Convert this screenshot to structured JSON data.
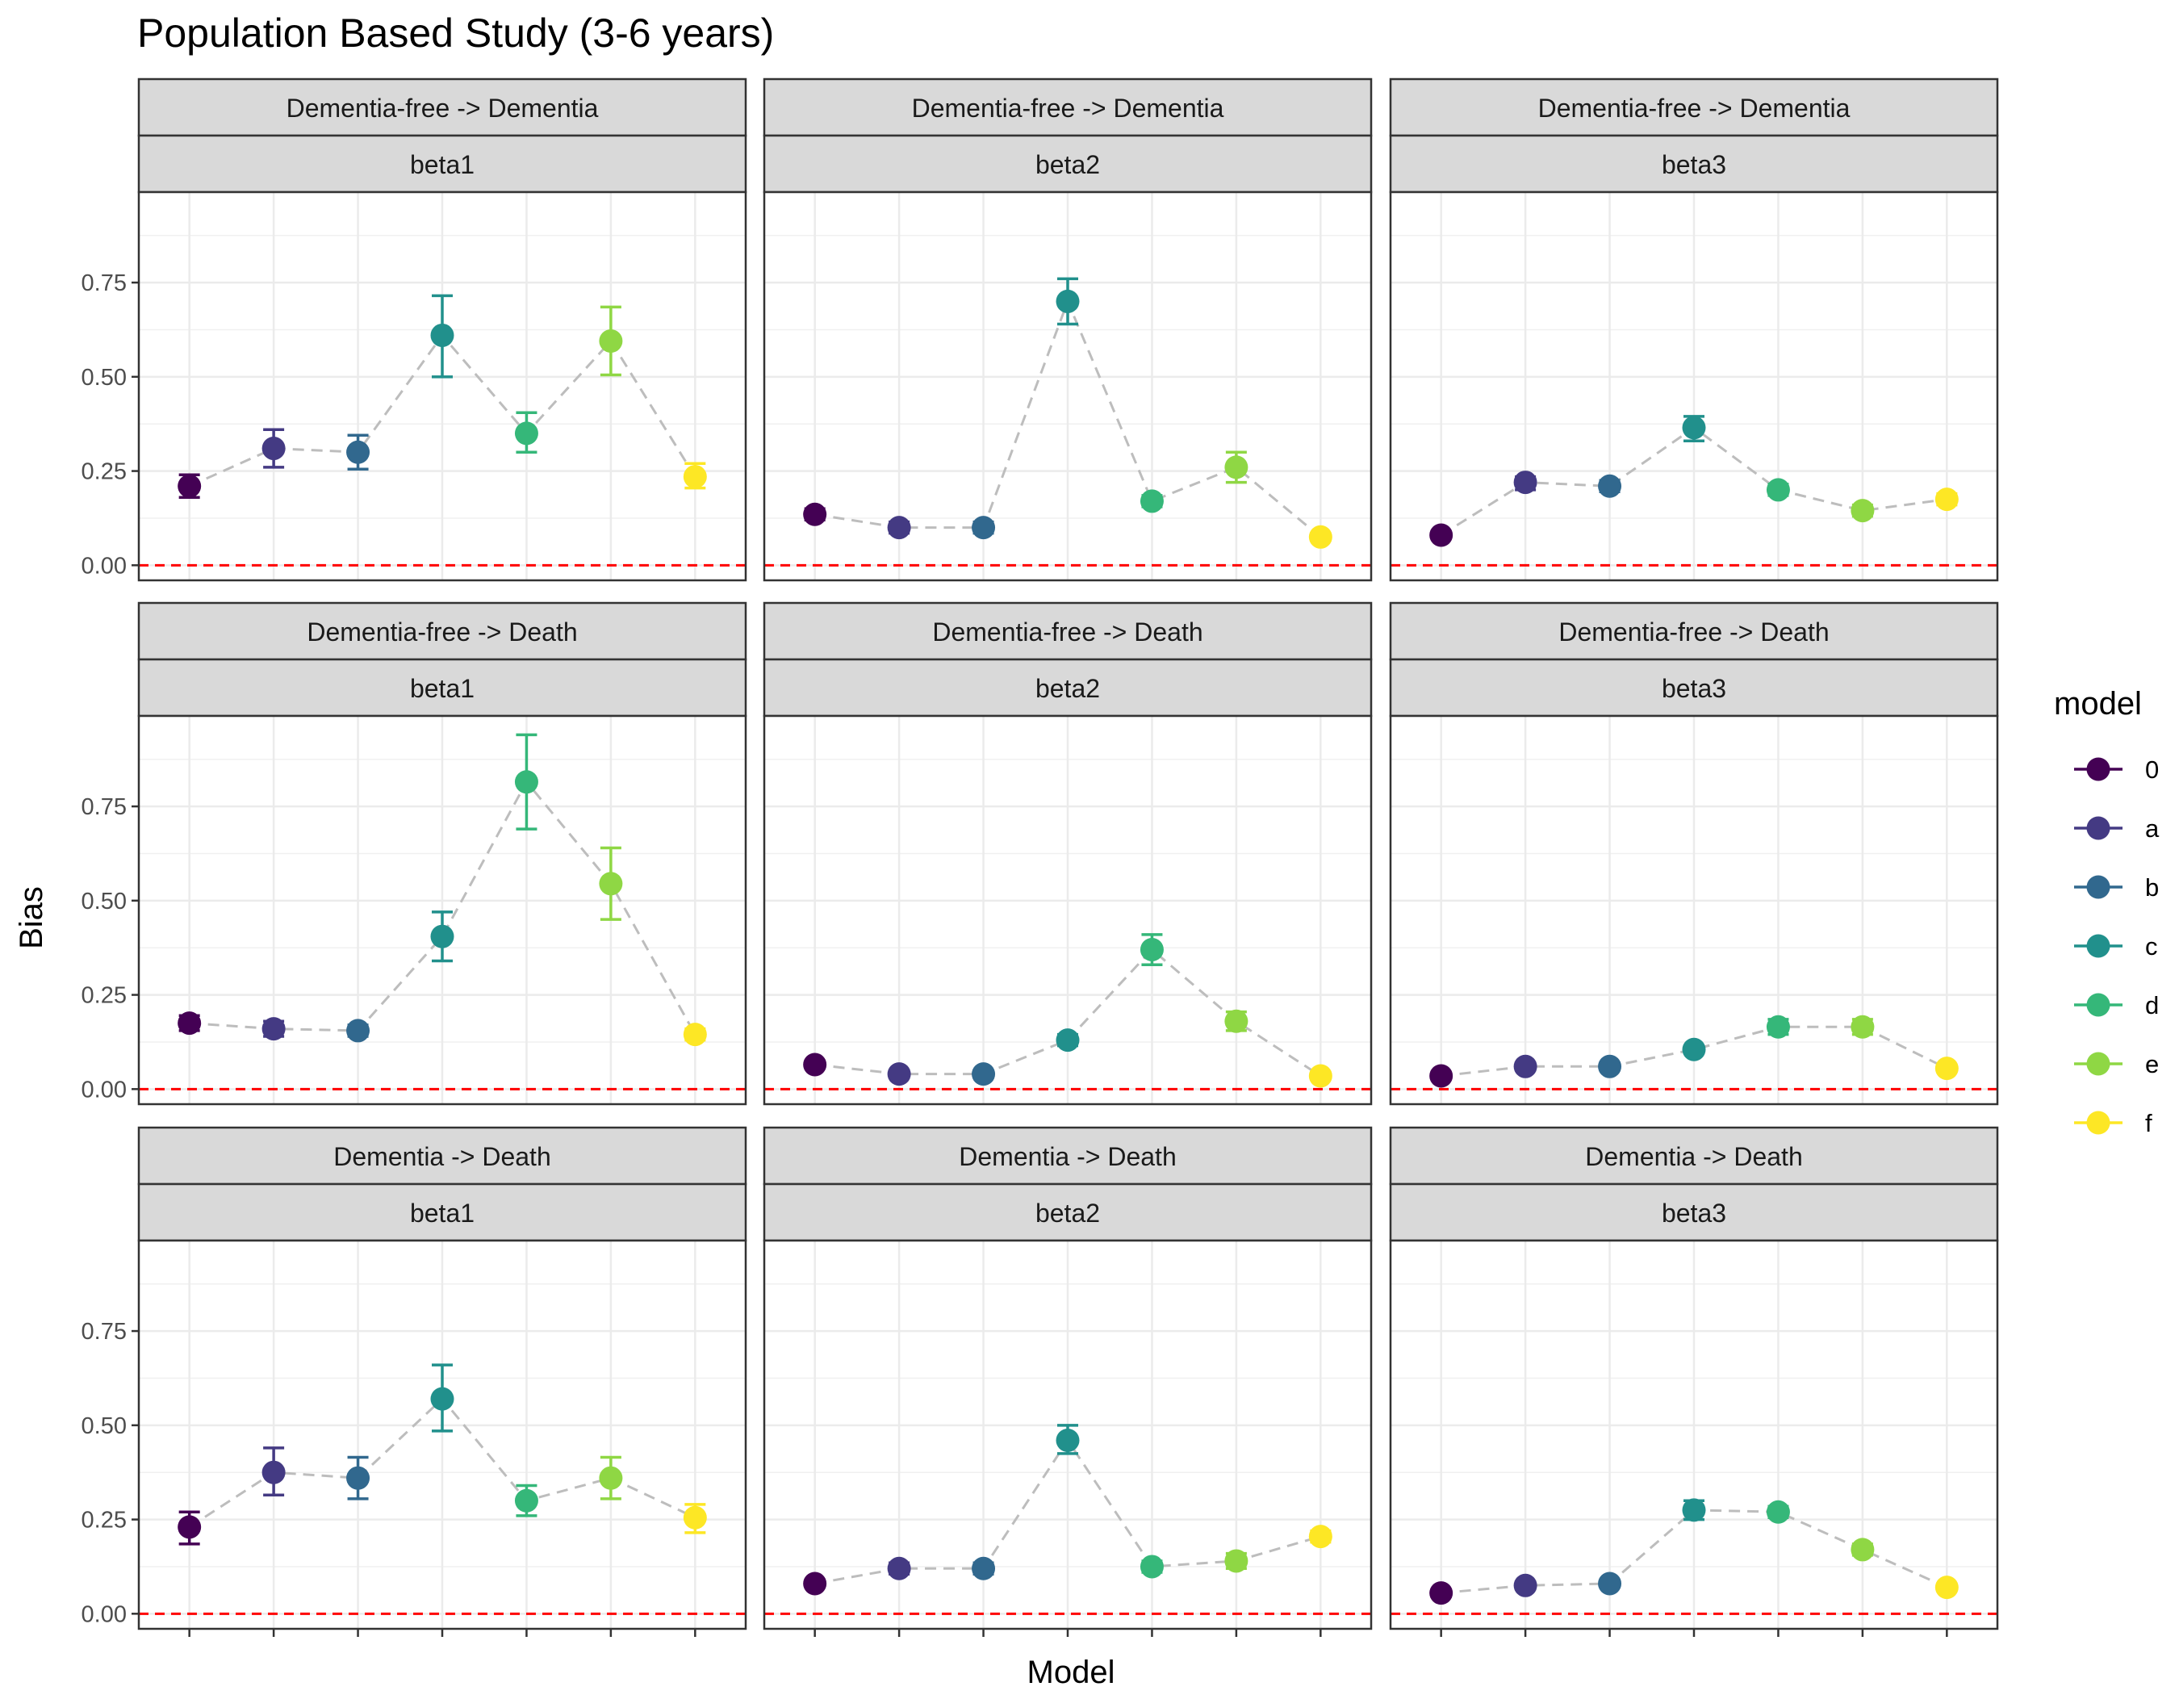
{
  "chart_data": {
    "type": "scatter",
    "title": "Population Based Study (3-6 years)",
    "xlabel": "Model",
    "ylabel": "Bias",
    "ylim": [
      -0.04,
      0.99
    ],
    "yticks": [
      0.0,
      0.25,
      0.5,
      0.75
    ],
    "ytick_labels": [
      "0.00",
      "0.25",
      "0.50",
      "0.75"
    ],
    "reference_line": 0.0,
    "reference_line_color": "#ff0000",
    "connector_color": "#bdbdbd",
    "grid": true,
    "legend": {
      "title": "model",
      "position": "right",
      "entries": [
        "0",
        "a",
        "b",
        "c",
        "d",
        "e",
        "f"
      ],
      "colors": [
        "#440154",
        "#443a83",
        "#31688e",
        "#21908c",
        "#35b779",
        "#8fd744",
        "#fde725"
      ]
    },
    "categories": [
      "0",
      "a",
      "b",
      "c",
      "d",
      "e",
      "f"
    ],
    "facets": [
      {
        "transition": "Dementia-free -> Dementia",
        "param": "beta1",
        "values": [
          0.21,
          0.31,
          0.3,
          0.61,
          0.35,
          0.595,
          0.235
        ],
        "lower": [
          0.18,
          0.26,
          0.255,
          0.5,
          0.3,
          0.505,
          0.205
        ],
        "upper": [
          0.24,
          0.36,
          0.345,
          0.715,
          0.405,
          0.685,
          0.27
        ]
      },
      {
        "transition": "Dementia-free -> Dementia",
        "param": "beta2",
        "values": [
          0.135,
          0.1,
          0.1,
          0.7,
          0.17,
          0.26,
          0.075
        ],
        "lower": [
          0.12,
          0.085,
          0.085,
          0.64,
          0.155,
          0.22,
          0.065
        ],
        "upper": [
          0.15,
          0.115,
          0.115,
          0.76,
          0.185,
          0.3,
          0.085
        ]
      },
      {
        "transition": "Dementia-free -> Dementia",
        "param": "beta3",
        "values": [
          0.08,
          0.22,
          0.21,
          0.365,
          0.2,
          0.145,
          0.175
        ],
        "lower": [
          0.07,
          0.2,
          0.195,
          0.33,
          0.185,
          0.13,
          0.16
        ],
        "upper": [
          0.09,
          0.235,
          0.225,
          0.395,
          0.215,
          0.16,
          0.19
        ]
      },
      {
        "transition": "Dementia-free -> Death",
        "param": "beta1",
        "values": [
          0.175,
          0.16,
          0.155,
          0.405,
          0.815,
          0.545,
          0.145
        ],
        "lower": [
          0.155,
          0.14,
          0.14,
          0.34,
          0.69,
          0.45,
          0.13
        ],
        "upper": [
          0.195,
          0.18,
          0.17,
          0.47,
          0.94,
          0.64,
          0.16
        ]
      },
      {
        "transition": "Dementia-free -> Death",
        "param": "beta2",
        "values": [
          0.065,
          0.04,
          0.04,
          0.13,
          0.37,
          0.18,
          0.035
        ],
        "lower": [
          0.055,
          0.03,
          0.03,
          0.115,
          0.33,
          0.155,
          0.025
        ],
        "upper": [
          0.075,
          0.05,
          0.05,
          0.145,
          0.41,
          0.205,
          0.045
        ]
      },
      {
        "transition": "Dementia-free -> Death",
        "param": "beta3",
        "values": [
          0.035,
          0.06,
          0.06,
          0.105,
          0.165,
          0.165,
          0.055
        ],
        "lower": [
          0.025,
          0.05,
          0.05,
          0.095,
          0.145,
          0.145,
          0.045
        ],
        "upper": [
          0.045,
          0.07,
          0.07,
          0.115,
          0.185,
          0.185,
          0.065
        ]
      },
      {
        "transition": "Dementia -> Death",
        "param": "beta1",
        "values": [
          0.23,
          0.375,
          0.36,
          0.57,
          0.3,
          0.36,
          0.255
        ],
        "lower": [
          0.185,
          0.315,
          0.305,
          0.485,
          0.26,
          0.305,
          0.215
        ],
        "upper": [
          0.27,
          0.44,
          0.415,
          0.66,
          0.34,
          0.415,
          0.29
        ]
      },
      {
        "transition": "Dementia -> Death",
        "param": "beta2",
        "values": [
          0.08,
          0.12,
          0.12,
          0.46,
          0.125,
          0.14,
          0.205
        ],
        "lower": [
          0.07,
          0.105,
          0.105,
          0.425,
          0.11,
          0.12,
          0.19
        ],
        "upper": [
          0.09,
          0.135,
          0.135,
          0.5,
          0.14,
          0.16,
          0.22
        ]
      },
      {
        "transition": "Dementia -> Death",
        "param": "beta3",
        "values": [
          0.055,
          0.075,
          0.08,
          0.275,
          0.27,
          0.17,
          0.07
        ],
        "lower": [
          0.045,
          0.065,
          0.07,
          0.25,
          0.255,
          0.155,
          0.06
        ],
        "upper": [
          0.065,
          0.085,
          0.09,
          0.3,
          0.285,
          0.185,
          0.08
        ]
      }
    ]
  }
}
